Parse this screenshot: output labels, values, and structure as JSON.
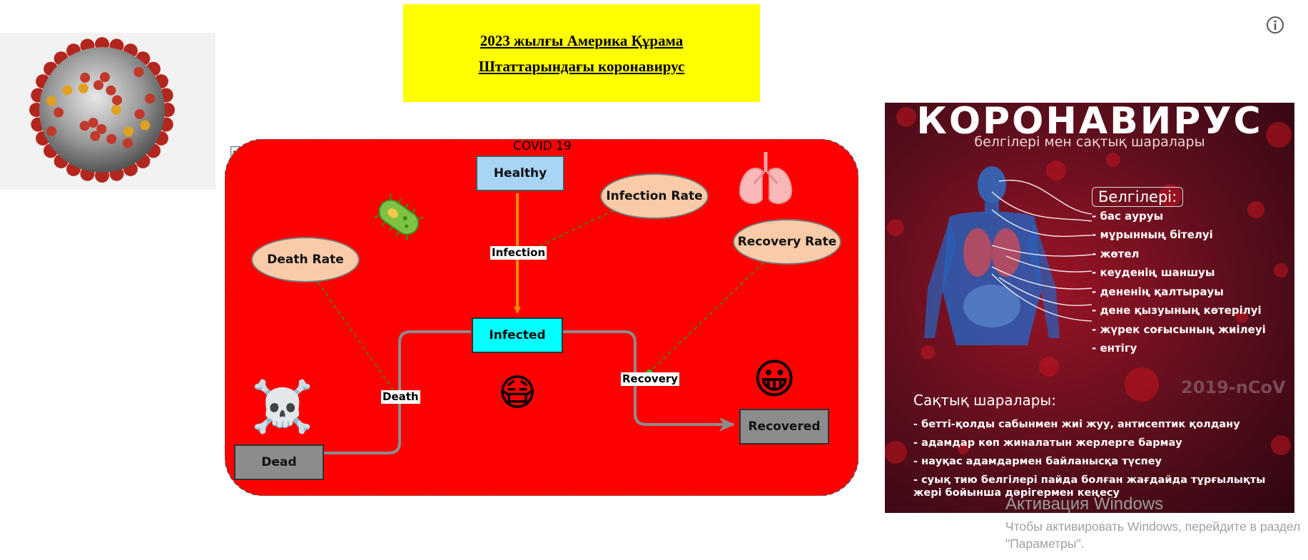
{
  "title": "2023 жылғы Америка Құрама Штаттарындағы коронавирус",
  "diagram": {
    "group_label": "COVID 19",
    "collapse_symbol": "−",
    "stocks": {
      "healthy": "Healthy",
      "infected": "Infected",
      "recovered": "Recovered",
      "dead": "Dead"
    },
    "rates": {
      "infection_rate": "Infection Rate",
      "recovery_rate": "Recovery Rate",
      "death_rate": "Death Rate"
    },
    "flows": {
      "infection": "Infection",
      "recovery": "Recovery",
      "death": "Death"
    },
    "emojis": {
      "skull": "☠️",
      "mask": "😷",
      "smile": "😀",
      "microbe": "🦠",
      "lungs": "🫁"
    },
    "colors": {
      "group_fill": "#ff0000",
      "healthy_fill": "#a8d4f5",
      "infected_fill": "#00ffff",
      "grey_fill": "#8c8c8c",
      "rate_fill": "#f9cba8",
      "infection_flow": "#ff8c00",
      "other_flow": "#8c8c8c",
      "link": "#1f9e1f"
    }
  },
  "poster": {
    "title": "КОРОНАВИРУС",
    "subtitle": "белгілері мен сақтық шаралары",
    "symptoms_header": "Белгілері:",
    "symptoms": [
      "- бас ауруы",
      "- мұрынның бітелуі",
      "- жөтел",
      "- кеуденің шаншуы",
      "- дененің қалтырауы",
      "- дене қызуының көтерілуі",
      "- жүрек соғысының жиілеуі",
      "- ентігу"
    ],
    "ncov": "2019-nCoV",
    "prevention_header": "Сақтық шаралары:",
    "prevention": [
      "- бетті-қолды сабынмен жиі жуу, антисептик қолдану",
      "- адамдар көп жиналатын жерлерге бармау",
      "- науқас адамдармен байланысқа түспеу",
      "- суық тию белгілері пайда болған жағдайда тұрғылықты жері бойынша дәрігермен кеңесу"
    ]
  },
  "windows_watermark": {
    "activate": "Активация Windows",
    "hint": "Чтобы активировать Windows, перейдите в раздел \"Параметры\"."
  },
  "icons": {
    "info": "info-icon",
    "virus": "coronavirus-image",
    "lungs": "lungs-icon",
    "microbe": "microbe-icon"
  }
}
